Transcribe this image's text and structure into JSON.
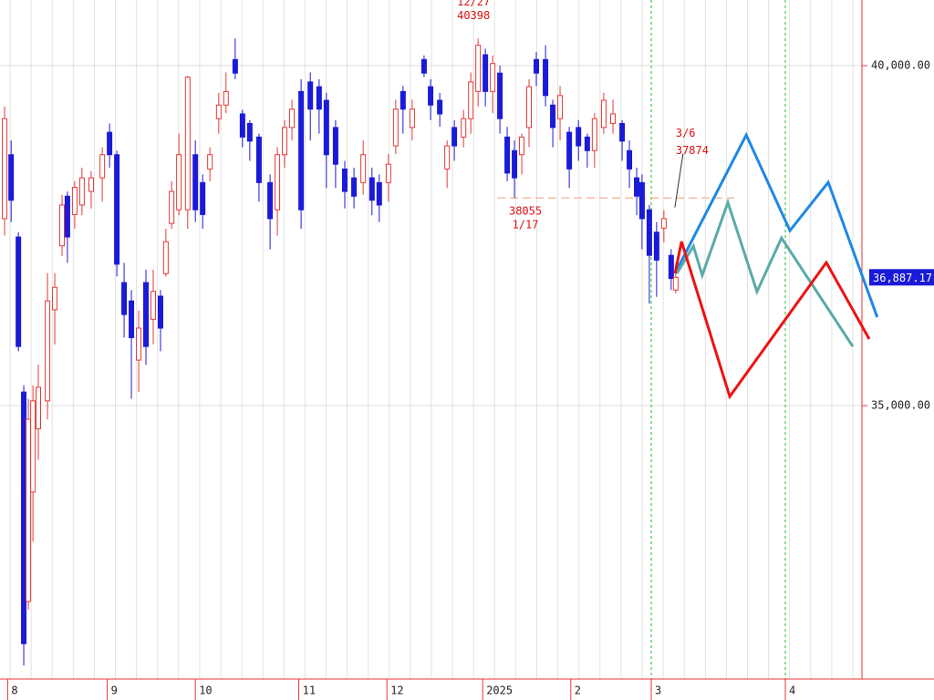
{
  "chart_data": {
    "type": "candlestick",
    "up_color": "#e53935",
    "down_color": "#1a1ad8",
    "xlim": [
      0,
      225
    ],
    "ylim": [
      30980,
      40965
    ],
    "yticks": [
      {
        "value": 40000,
        "label": "40,000.00"
      },
      {
        "value": 35000,
        "label": "35,000.00"
      }
    ],
    "xticks": [
      {
        "value": 2,
        "label": "8"
      },
      {
        "value": 28,
        "label": "9"
      },
      {
        "value": 51,
        "label": "10"
      },
      {
        "value": 78,
        "label": "11"
      },
      {
        "value": 101,
        "label": "12"
      },
      {
        "value": 126,
        "label": "2025"
      },
      {
        "value": 149,
        "label": "2"
      },
      {
        "value": 170,
        "label": "3"
      },
      {
        "value": 205,
        "label": "4"
      }
    ],
    "vlines": [
      170,
      205
    ],
    "vline_color": "#22bb22",
    "x": [
      1.2,
      2.9,
      4.8,
      6.2,
      7.4,
      8.6,
      10,
      12.4,
      14.3,
      16.2,
      17.6,
      19.5,
      21.4,
      23.8,
      26.7,
      28.6,
      30.5,
      32.4,
      34.3,
      36.2,
      38.1,
      40,
      41.9,
      43.3,
      44.8,
      46.7,
      49,
      51,
      52.9,
      54.8,
      57.1,
      59,
      61.4,
      63.3,
      65.2,
      67.6,
      70.5,
      72.4,
      74.3,
      76.2,
      78.6,
      81,
      83.3,
      85.2,
      87.6,
      90,
      92.4,
      94.8,
      97.1,
      99,
      101.4,
      103.3,
      105.2,
      107.6,
      110.7,
      112.4,
      114.8,
      116.7,
      118.6,
      121,
      122.9,
      124.8,
      126.7,
      128.6,
      130.5,
      132.4,
      134.3,
      136.2,
      138.1,
      140,
      142.4,
      144.3,
      146.2,
      148.6,
      151,
      153.3,
      155.2,
      157.6,
      160,
      162.4,
      164.3,
      166.2,
      167.6,
      169.5,
      171.4,
      173.3,
      175.2,
      176.4
    ],
    "open": [
      37750,
      38690,
      37480,
      35200,
      32120,
      33730,
      34660,
      35070,
      36410,
      37350,
      38080,
      37810,
      37950,
      38150,
      38350,
      39020,
      38690,
      36810,
      36540,
      35670,
      36810,
      36270,
      36610,
      36940,
      37680,
      37880,
      37880,
      38690,
      38280,
      38480,
      39220,
      39420,
      40090,
      39290,
      39150,
      38950,
      38280,
      37880,
      38690,
      39090,
      39620,
      39760,
      39690,
      39490,
      39090,
      38480,
      38350,
      38280,
      38350,
      38280,
      38280,
      38820,
      39620,
      39090,
      40090,
      39690,
      39490,
      38480,
      39090,
      38950,
      39220,
      39620,
      40160,
      39620,
      39890,
      38950,
      38750,
      38690,
      39090,
      40090,
      40090,
      39420,
      39220,
      39020,
      39090,
      38950,
      38750,
      39090,
      39150,
      39150,
      38750,
      38350,
      38280,
      37880,
      37550,
      37610,
      37210,
      36700
    ],
    "high": [
      39400,
      38900,
      37550,
      35300,
      35100,
      35300,
      35600,
      36950,
      36950,
      38100,
      38150,
      38300,
      38500,
      38450,
      38800,
      39150,
      38750,
      37100,
      36700,
      36400,
      37000,
      37000,
      36700,
      37600,
      38300,
      39000,
      39850,
      38900,
      38400,
      38800,
      39600,
      39900,
      40400,
      39350,
      39200,
      39000,
      38400,
      38800,
      39200,
      39500,
      39800,
      39900,
      39800,
      39600,
      39200,
      38600,
      38500,
      38900,
      38500,
      38400,
      38700,
      39500,
      39700,
      39500,
      40150,
      39800,
      39600,
      38900,
      39200,
      39350,
      39900,
      40398,
      40250,
      40150,
      40000,
      39100,
      38900,
      39000,
      39800,
      40200,
      40300,
      39500,
      39700,
      39100,
      39200,
      39000,
      39300,
      39600,
      39500,
      39200,
      38900,
      38500,
      38400,
      37950,
      37700,
      37874,
      37300,
      37100
    ],
    "low": [
      37500,
      37700,
      35800,
      31180,
      32000,
      33000,
      34200,
      34800,
      35900,
      37200,
      37100,
      37600,
      37800,
      37900,
      38000,
      38500,
      36900,
      36000,
      35100,
      35200,
      35600,
      35900,
      35800,
      36900,
      37600,
      37800,
      37600,
      37700,
      37600,
      38300,
      39000,
      39300,
      39800,
      38800,
      38600,
      38000,
      37300,
      37500,
      38500,
      38900,
      37600,
      38900,
      39000,
      38200,
      38200,
      37900,
      37900,
      38100,
      37800,
      37700,
      38000,
      38700,
      39000,
      38900,
      39830,
      39200,
      39100,
      38200,
      38600,
      38800,
      39000,
      39400,
      39400,
      39300,
      39000,
      38300,
      38055,
      38400,
      38800,
      39700,
      39400,
      38800,
      38900,
      38200,
      38600,
      38500,
      38500,
      39000,
      39000,
      38600,
      38200,
      37800,
      37300,
      36500,
      36600,
      37400,
      36700,
      36650
    ],
    "close": [
      39220,
      38020,
      35870,
      31500,
      34800,
      35070,
      35270,
      36540,
      36740,
      37950,
      37480,
      38210,
      38350,
      38350,
      38690,
      38690,
      37080,
      36340,
      36000,
      36140,
      35870,
      36680,
      36140,
      37410,
      38150,
      38690,
      39830,
      37880,
      37810,
      38690,
      39420,
      39620,
      39890,
      38950,
      38890,
      38280,
      37750,
      38690,
      39090,
      39360,
      37880,
      39360,
      39360,
      38690,
      38550,
      38150,
      38080,
      38690,
      38020,
      37950,
      38550,
      39360,
      39360,
      39360,
      39890,
      39420,
      39290,
      38820,
      38820,
      39220,
      39760,
      40300,
      39620,
      40030,
      39220,
      38420,
      38350,
      38950,
      39690,
      39890,
      39560,
      39090,
      39560,
      38480,
      38820,
      38750,
      39220,
      39490,
      39290,
      38890,
      38480,
      38080,
      37750,
      37210,
      37140,
      37750,
      36870,
      36887
    ],
    "annotations": [
      {
        "date": "12/27",
        "value": 40398,
        "x": 124.8,
        "place": "above"
      },
      {
        "date": "1/17",
        "value": 38055,
        "x": 136.2,
        "place": "below"
      },
      {
        "date": "3/6",
        "value": 37874,
        "x": 178.3,
        "place": "leader"
      }
    ],
    "annotation_color": "#dd1111",
    "support_line": {
      "value": 38055,
      "x": [
        129.8,
        191.7
      ],
      "color": "#f0a070"
    },
    "last_price": {
      "value": 36887.17,
      "label": "36,887.17"
    },
    "projections": [
      {
        "color": "#1e88e5",
        "x": [
          176.2,
          194.8,
          206.2,
          216.2,
          229
        ],
        "values": [
          36944,
          38981,
          37574,
          38284,
          36300
        ]
      },
      {
        "color": "#5aaaa8",
        "x": [
          176.7,
          181,
          183.3,
          190,
          197.6,
          204,
          222.6
        ],
        "values": [
          36944,
          37346,
          36917,
          37989,
          36676,
          37466,
          35871
        ]
      },
      {
        "color": "#ee1111",
        "x": [
          176.2,
          177.9,
          190.5,
          215.7,
          226.9
        ],
        "values": [
          36944,
          37413,
          35134,
          37105,
          35979
        ]
      }
    ]
  }
}
